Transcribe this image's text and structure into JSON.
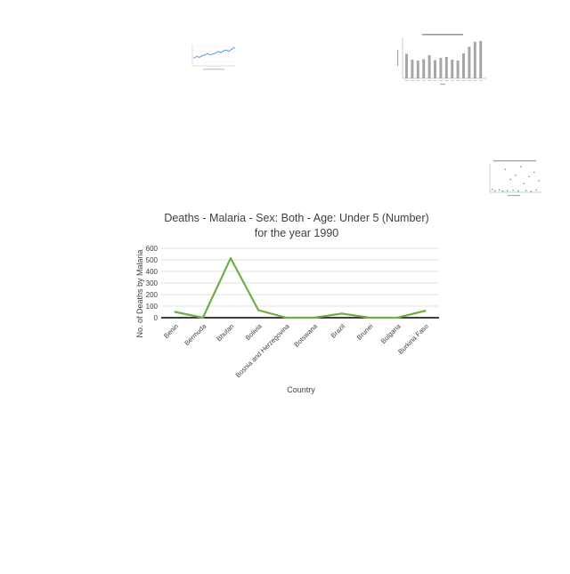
{
  "chart_data": {
    "type": "line",
    "title_line1": "Deaths - Malaria - Sex: Both - Age: Under 5 (Number)",
    "title_line2": "for the year 1990",
    "xlabel": "Country",
    "ylabel": "No. of Deaths by Malaria",
    "categories": [
      "Benin",
      "Bermuda",
      "Bhutan",
      "Bolivia",
      "Bosnia and Herzegovina",
      "Botswana",
      "Brazil",
      "Brunei",
      "Bulgaria",
      "Burkina Faso"
    ],
    "values": [
      50,
      0,
      515,
      65,
      0,
      0,
      35,
      0,
      0,
      60
    ],
    "ylim": [
      0,
      600
    ],
    "yticks": [
      0,
      100,
      200,
      300,
      400,
      500,
      600
    ],
    "grid": true,
    "line_color": "#70ad47",
    "grid_color": "#d9d9d9",
    "axis_color": "#000000"
  },
  "thumbnails": {
    "a_points": [
      3,
      3.5,
      3.2,
      3.8,
      4.1,
      4.6,
      4.2,
      4.4,
      4.8,
      5.3,
      5.0,
      5.6,
      5.9,
      5.5,
      6.2,
      6.8
    ],
    "b_bars": [
      5.5,
      4.2,
      4.0,
      4.3,
      5.2,
      4.1,
      4.6,
      4.8,
      4.2,
      4.0,
      5.6,
      7.1,
      8.2,
      8.4
    ],
    "c_points": [
      [
        0.05,
        0.9
      ],
      [
        0.1,
        0.95
      ],
      [
        0.18,
        0.92
      ],
      [
        0.25,
        0.96
      ],
      [
        0.3,
        0.2
      ],
      [
        0.34,
        0.95
      ],
      [
        0.4,
        0.55
      ],
      [
        0.45,
        0.93
      ],
      [
        0.5,
        0.4
      ],
      [
        0.55,
        0.96
      ],
      [
        0.6,
        0.1
      ],
      [
        0.66,
        0.7
      ],
      [
        0.7,
        0.94
      ],
      [
        0.76,
        0.45
      ],
      [
        0.8,
        0.97
      ],
      [
        0.86,
        0.3
      ],
      [
        0.9,
        0.92
      ],
      [
        0.95,
        0.6
      ]
    ]
  }
}
